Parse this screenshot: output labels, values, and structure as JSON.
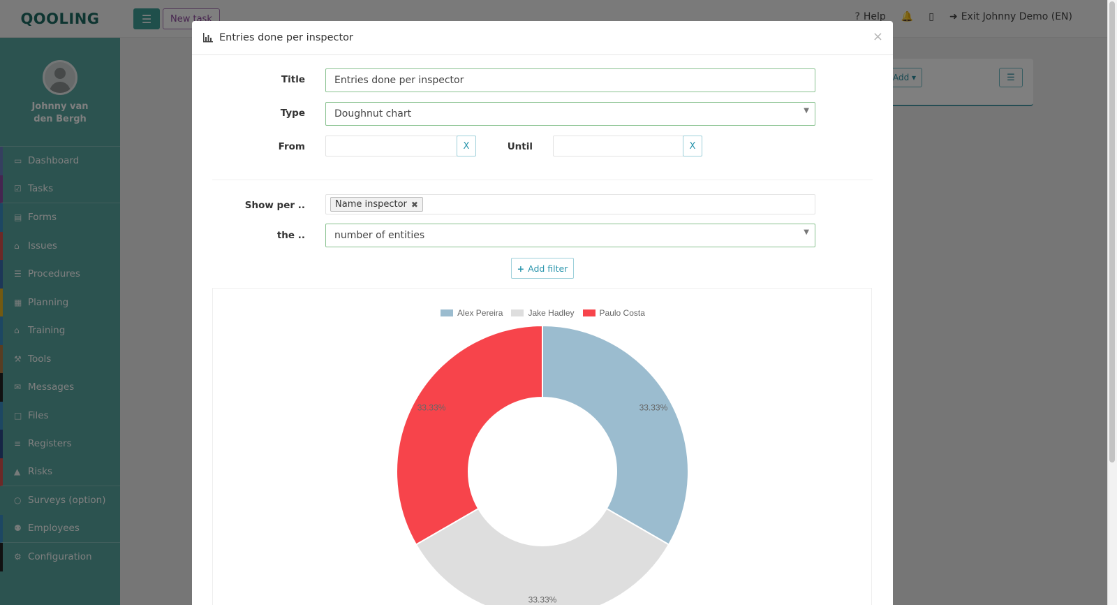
{
  "app": {
    "logo": "QOOLING",
    "new_task": "New task",
    "help": "Help",
    "exit": "Exit Johnny Demo (EN)"
  },
  "user": {
    "name": "Johnny van den Bergh"
  },
  "sidebar": {
    "items": [
      {
        "label": "Dashboard",
        "icon": "monitor-icon",
        "color": "#6b7fbf"
      },
      {
        "label": "Tasks",
        "icon": "check-square-icon",
        "color": "#8a4aa0"
      },
      {
        "label": "Forms",
        "icon": "form-icon",
        "color": "#3b8fc7"
      },
      {
        "label": "Issues",
        "icon": "bell-icon",
        "color": "#d9534f"
      },
      {
        "label": "Procedures",
        "icon": "list-icon",
        "color": "#3b6fb0"
      },
      {
        "label": "Planning",
        "icon": "calendar-icon",
        "color": "#e6b422"
      },
      {
        "label": "Training",
        "icon": "graduation-cap-icon",
        "color": "#3b8fc7"
      },
      {
        "label": "Tools",
        "icon": "wrench-icon",
        "color": "#b07a45"
      },
      {
        "label": "Messages",
        "icon": "envelope-icon",
        "color": "#222222"
      },
      {
        "label": "Files",
        "icon": "file-icon",
        "color": "#3b8fc7"
      },
      {
        "label": "Registers",
        "icon": "registers-icon",
        "color": "#2c4a8a"
      },
      {
        "label": "Risks",
        "icon": "warning-icon",
        "color": "#d9534f"
      },
      {
        "label": "Surveys (option)",
        "icon": "comments-icon",
        "color": "#58a7a1"
      },
      {
        "label": "Employees",
        "icon": "users-icon",
        "color": "#3b8fc7"
      },
      {
        "label": "Configuration",
        "icon": "gear-icon",
        "color": "#222222"
      }
    ]
  },
  "background": {
    "add_label": "Add"
  },
  "modal": {
    "title": "Entries done per inspector",
    "title_label": "Title",
    "title_value": "Entries done per inspector",
    "type_label": "Type",
    "type_value": "Doughnut chart",
    "from_label": "From",
    "until_label": "Until",
    "clear_label": "X",
    "show_per_label": "Show per ..",
    "show_per_tag": "Name inspector",
    "the_label": "the ..",
    "the_value": "number of entities",
    "add_filter": "Add filter"
  },
  "chart_data": {
    "type": "pie",
    "variant": "doughnut",
    "legend_position": "top",
    "categories": [
      "Alex Pereira",
      "Jake Hadley",
      "Paulo Costa"
    ],
    "values": [
      33.33,
      33.33,
      33.33
    ],
    "labels": [
      "33.33%",
      "33.33%",
      "33.33%"
    ],
    "colors": [
      "#9bbccf",
      "#dedede",
      "#f7444b"
    ]
  }
}
